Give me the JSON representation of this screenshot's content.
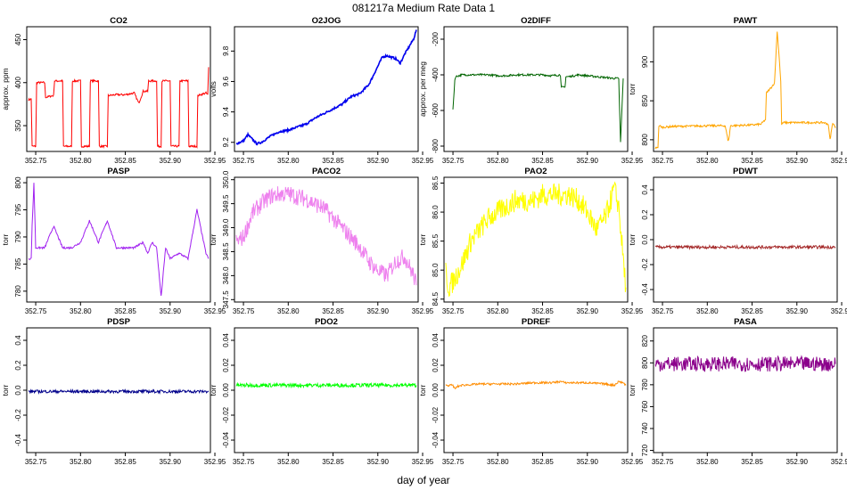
{
  "title": "081217a   Medium Rate Data 1",
  "xlabel": "day of year",
  "chart_data": [
    {
      "type": "line",
      "title": "CO2",
      "ylabel": "approx. ppm",
      "color": "#ff0000",
      "xlim": [
        352.74,
        352.945
      ],
      "ylim": [
        320,
        465
      ],
      "x_ticks": [
        "352.75",
        "352.80",
        "352.85",
        "352.90",
        "352.95"
      ],
      "y_ticks": [
        {
          "v": 350,
          "label": "350"
        },
        {
          "v": 400,
          "label": "400"
        },
        {
          "v": 450,
          "label": "450"
        }
      ],
      "series": [
        {
          "x": [
            352.742,
            352.745,
            352.746,
            352.75,
            352.751,
            352.76,
            352.761,
            352.77,
            352.771,
            352.78,
            352.781,
            352.79,
            352.791,
            352.8,
            352.801,
            352.81,
            352.811,
            352.82,
            352.821,
            352.83,
            352.831,
            352.84,
            352.85,
            352.86,
            352.865,
            352.87,
            352.875,
            352.876,
            352.885,
            352.886,
            352.89,
            352.891,
            352.9,
            352.901,
            352.91,
            352.911,
            352.92,
            352.921,
            352.93,
            352.931,
            352.94,
            352.942,
            352.943
          ],
          "y": [
            380,
            381,
            326,
            326,
            400,
            400,
            383,
            385,
            402,
            402,
            326,
            326,
            402,
            402,
            326,
            326,
            402,
            402,
            326,
            326,
            385,
            386,
            386,
            388,
            376,
            390,
            390,
            402,
            402,
            326,
            326,
            402,
            402,
            326,
            326,
            402,
            402,
            326,
            326,
            385,
            388,
            386,
            418
          ]
        }
      ]
    },
    {
      "type": "line",
      "title": "O2JOG",
      "ylabel": "volts",
      "color": "#0000ee",
      "xlim": [
        352.74,
        352.945
      ],
      "ylim": [
        9.14,
        9.96
      ],
      "x_ticks": [
        "352.75",
        "352.80",
        "352.85",
        "352.90",
        "352.95"
      ],
      "y_ticks": [
        {
          "v": 9.2,
          "label": "9.2"
        },
        {
          "v": 9.4,
          "label": "9.4"
        },
        {
          "v": 9.6,
          "label": "9.6"
        },
        {
          "v": 9.8,
          "label": "9.8"
        }
      ],
      "series": [
        {
          "x": [
            352.742,
            352.75,
            352.755,
            352.76,
            352.765,
            352.77,
            352.78,
            352.79,
            352.8,
            352.81,
            352.82,
            352.83,
            352.84,
            352.85,
            352.86,
            352.87,
            352.88,
            352.89,
            352.9,
            352.905,
            352.91,
            352.92,
            352.925,
            352.93,
            352.94,
            352.943
          ],
          "y": [
            9.19,
            9.21,
            9.25,
            9.22,
            9.19,
            9.2,
            9.24,
            9.27,
            9.28,
            9.3,
            9.32,
            9.36,
            9.39,
            9.42,
            9.45,
            9.5,
            9.52,
            9.58,
            9.7,
            9.76,
            9.77,
            9.75,
            9.72,
            9.78,
            9.88,
            9.94
          ]
        }
      ]
    },
    {
      "type": "line",
      "title": "O2DIFF",
      "ylabel": "approx. per meg",
      "color": "#006400",
      "xlim": [
        352.74,
        352.945
      ],
      "ylim": [
        -830,
        -130
      ],
      "x_ticks": [
        "352.75",
        "352.80",
        "352.85",
        "352.90",
        "352.95"
      ],
      "y_ticks": [
        {
          "v": -800,
          "label": "-800"
        },
        {
          "v": -600,
          "label": "-600"
        },
        {
          "v": -400,
          "label": "-400"
        },
        {
          "v": -200,
          "label": "-200"
        }
      ],
      "series": [
        {
          "x": [
            352.75,
            352.752,
            352.753,
            352.76,
            352.77,
            352.78,
            352.79,
            352.8,
            352.81,
            352.82,
            352.83,
            352.84,
            352.85,
            352.86,
            352.87,
            352.871,
            352.875,
            352.876,
            352.88,
            352.89,
            352.9,
            352.91,
            352.92,
            352.93,
            352.935,
            352.937,
            352.94
          ],
          "y": [
            -600,
            -430,
            -410,
            -400,
            -400,
            -400,
            -400,
            -405,
            -405,
            -400,
            -400,
            -400,
            -400,
            -405,
            -400,
            -470,
            -470,
            -410,
            -410,
            -400,
            -405,
            -410,
            -415,
            -420,
            -420,
            -780,
            -420
          ]
        }
      ]
    },
    {
      "type": "line",
      "title": "PAWT",
      "ylabel": "torr",
      "color": "#ffa500",
      "xlim": [
        352.74,
        352.945
      ],
      "ylim": [
        785,
        945
      ],
      "x_ticks": [
        "352.75",
        "352.80",
        "352.85",
        "352.90",
        "352.95"
      ],
      "y_ticks": [
        {
          "v": 800,
          "label": "800"
        },
        {
          "v": 850,
          "label": "850"
        },
        {
          "v": 900,
          "label": "900"
        }
      ],
      "series": [
        {
          "x": [
            352.742,
            352.745,
            352.746,
            352.75,
            352.76,
            352.8,
            352.82,
            352.823,
            352.824,
            352.826,
            352.85,
            352.86,
            352.865,
            352.866,
            352.872,
            352.875,
            352.878,
            352.88,
            352.882,
            352.883,
            352.885,
            352.9,
            352.93,
            352.935,
            352.937,
            352.94,
            352.943
          ],
          "y": [
            789,
            791,
            818,
            816,
            817,
            818,
            818,
            800,
            800,
            818,
            819,
            820,
            826,
            860,
            868,
            873,
            940,
            910,
            875,
            820,
            822,
            822,
            822,
            820,
            800,
            822,
            815
          ]
        }
      ]
    },
    {
      "type": "line",
      "title": "PASP",
      "ylabel": "torr",
      "color": "#a020f0",
      "xlim": [
        352.74,
        352.945
      ],
      "ylim": [
        778,
        801
      ],
      "x_ticks": [
        "352.75",
        "352.80",
        "352.85",
        "352.90",
        "352.95"
      ],
      "y_ticks": [
        {
          "v": 780,
          "label": "780"
        },
        {
          "v": 785,
          "label": "785"
        },
        {
          "v": 790,
          "label": "790"
        },
        {
          "v": 795,
          "label": "795"
        },
        {
          "v": 800,
          "label": "800"
        }
      ],
      "series": [
        {
          "x": [
            352.742,
            352.745,
            352.746,
            352.748,
            352.75,
            352.76,
            352.77,
            352.78,
            352.79,
            352.8,
            352.81,
            352.82,
            352.83,
            352.84,
            352.85,
            352.86,
            352.87,
            352.875,
            352.88,
            352.885,
            352.89,
            352.895,
            352.9,
            352.91,
            352.92,
            352.93,
            352.94,
            352.943
          ],
          "y": [
            786,
            786,
            792,
            800,
            788,
            788,
            792,
            788,
            788,
            789,
            793,
            789,
            793,
            788,
            788,
            788,
            789,
            787,
            789,
            788,
            779,
            788,
            786,
            787,
            786,
            795,
            787,
            786
          ]
        }
      ]
    },
    {
      "type": "line",
      "title": "PACO2",
      "ylabel": "torr",
      "color": "#ee82ee",
      "xlim": [
        352.74,
        352.945
      ],
      "ylim": [
        347.45,
        350.05
      ],
      "x_ticks": [
        "352.75",
        "352.80",
        "352.85",
        "352.90",
        "352.95"
      ],
      "y_ticks": [
        {
          "v": 347.5,
          "label": "347.5"
        },
        {
          "v": 348.0,
          "label": "348.0"
        },
        {
          "v": 348.5,
          "label": "348.5"
        },
        {
          "v": 349.0,
          "label": "349.0"
        },
        {
          "v": 349.5,
          "label": "349.5"
        },
        {
          "v": 350.0,
          "label": "350.0"
        }
      ],
      "series": [
        {
          "x": [
            352.742,
            352.75,
            352.76,
            352.77,
            352.78,
            352.79,
            352.8,
            352.81,
            352.82,
            352.83,
            352.84,
            352.85,
            352.86,
            352.87,
            352.88,
            352.89,
            352.9,
            352.91,
            352.92,
            352.93,
            352.94,
            352.943
          ],
          "y": [
            348.7,
            348.8,
            349.3,
            349.5,
            349.65,
            349.7,
            349.7,
            349.65,
            349.6,
            349.5,
            349.4,
            349.2,
            349.0,
            348.8,
            348.6,
            348.3,
            348.1,
            348.0,
            348.3,
            348.4,
            348.0,
            347.8
          ]
        }
      ]
    },
    {
      "type": "line",
      "title": "PAO2",
      "ylabel": "torr",
      "color": "#ffff00",
      "xlim": [
        352.74,
        352.945
      ],
      "ylim": [
        84.45,
        86.6
      ],
      "x_ticks": [
        "352.75",
        "352.80",
        "352.85",
        "352.90",
        "352.95"
      ],
      "y_ticks": [
        {
          "v": 84.5,
          "label": "84.5"
        },
        {
          "v": 85.0,
          "label": "85.0"
        },
        {
          "v": 85.5,
          "label": "85.5"
        },
        {
          "v": 86.0,
          "label": "86.0"
        },
        {
          "v": 86.5,
          "label": "86.5"
        }
      ],
      "series": [
        {
          "x": [
            352.742,
            352.745,
            352.75,
            352.76,
            352.77,
            352.78,
            352.79,
            352.8,
            352.81,
            352.82,
            352.83,
            352.84,
            352.85,
            352.86,
            352.87,
            352.88,
            352.89,
            352.9,
            352.91,
            352.92,
            352.93,
            352.935,
            352.94,
            352.943
          ],
          "y": [
            85.0,
            84.7,
            84.8,
            85.1,
            85.5,
            85.7,
            85.9,
            86.0,
            86.1,
            86.2,
            86.2,
            86.2,
            86.3,
            86.3,
            86.3,
            86.3,
            86.2,
            86.0,
            85.7,
            85.9,
            86.4,
            86.1,
            85.2,
            84.7
          ]
        }
      ]
    },
    {
      "type": "line",
      "title": "PDWT",
      "ylabel": "torr",
      "color": "#a52a2a",
      "xlim": [
        352.74,
        352.945
      ],
      "ylim": [
        -0.5,
        0.5
      ],
      "x_ticks": [
        "352.75",
        "352.80",
        "352.85",
        "352.90",
        "352.95"
      ],
      "y_ticks": [
        {
          "v": -0.4,
          "label": "-0.4"
        },
        {
          "v": -0.2,
          "label": "-0.2"
        },
        {
          "v": 0.0,
          "label": "0.0"
        },
        {
          "v": 0.2,
          "label": "0.2"
        },
        {
          "v": 0.4,
          "label": "0.4"
        }
      ],
      "series": [
        {
          "x": [
            352.742,
            352.943
          ],
          "y": [
            -0.06,
            -0.06
          ]
        }
      ]
    },
    {
      "type": "line",
      "title": "PDSP",
      "ylabel": "torr",
      "color": "#00008b",
      "xlim": [
        352.74,
        352.945
      ],
      "ylim": [
        -0.5,
        0.5
      ],
      "x_ticks": [
        "352.75",
        "352.80",
        "352.85",
        "352.90",
        "352.95"
      ],
      "y_ticks": [
        {
          "v": -0.4,
          "label": "-0.4"
        },
        {
          "v": -0.2,
          "label": "-0.2"
        },
        {
          "v": 0.0,
          "label": "0.0"
        },
        {
          "v": 0.2,
          "label": "0.2"
        },
        {
          "v": 0.4,
          "label": "0.4"
        }
      ],
      "series": [
        {
          "x": [
            352.742,
            352.943
          ],
          "y": [
            -0.01,
            -0.01
          ]
        }
      ]
    },
    {
      "type": "line",
      "title": "PDO2",
      "ylabel": "torr",
      "color": "#00ff00",
      "xlim": [
        352.74,
        352.945
      ],
      "ylim": [
        -0.05,
        0.05
      ],
      "x_ticks": [
        "352.75",
        "352.80",
        "352.85",
        "352.90",
        "352.95"
      ],
      "y_ticks": [
        {
          "v": -0.04,
          "label": "-0.04"
        },
        {
          "v": -0.02,
          "label": "-0.02"
        },
        {
          "v": 0.0,
          "label": "0.00"
        },
        {
          "v": 0.02,
          "label": "0.02"
        },
        {
          "v": 0.04,
          "label": "0.04"
        }
      ],
      "series": [
        {
          "x": [
            352.742,
            352.943
          ],
          "y": [
            0.004,
            0.004
          ]
        }
      ]
    },
    {
      "type": "line",
      "title": "PDREF",
      "ylabel": "torr",
      "color": "#ff8c00",
      "xlim": [
        352.74,
        352.945
      ],
      "ylim": [
        -0.05,
        0.05
      ],
      "x_ticks": [
        "352.75",
        "352.80",
        "352.85",
        "352.90",
        "352.95"
      ],
      "y_ticks": [
        {
          "v": -0.04,
          "label": "-0.04"
        },
        {
          "v": -0.02,
          "label": "-0.02"
        },
        {
          "v": 0.0,
          "label": "0.00"
        },
        {
          "v": 0.02,
          "label": "0.02"
        },
        {
          "v": 0.04,
          "label": "0.04"
        }
      ],
      "series": [
        {
          "x": [
            352.742,
            352.75,
            352.752,
            352.755,
            352.76,
            352.78,
            352.8,
            352.82,
            352.84,
            352.86,
            352.87,
            352.875,
            352.88,
            352.9,
            352.92,
            352.93,
            352.935,
            352.94,
            352.943
          ],
          "y": [
            0.004,
            0.004,
            0.001,
            0.003,
            0.004,
            0.005,
            0.005,
            0.005,
            0.006,
            0.006,
            0.007,
            0.006,
            0.006,
            0.006,
            0.005,
            0.004,
            0.007,
            0.006,
            0.004
          ]
        }
      ]
    },
    {
      "type": "line",
      "title": "PASA",
      "ylabel": "torr",
      "color": "#8b008b",
      "xlim": [
        352.74,
        352.945
      ],
      "ylim": [
        718,
        832
      ],
      "x_ticks": [
        "352.75",
        "352.80",
        "352.85",
        "352.90",
        "352.95"
      ],
      "y_ticks": [
        {
          "v": 720,
          "label": "720"
        },
        {
          "v": 740,
          "label": "740"
        },
        {
          "v": 760,
          "label": "760"
        },
        {
          "v": 780,
          "label": "780"
        },
        {
          "v": 800,
          "label": "800"
        },
        {
          "v": 820,
          "label": "820"
        }
      ],
      "series": [
        {
          "x": [
            352.742,
            352.943
          ],
          "y": [
            799,
            799
          ]
        }
      ]
    }
  ]
}
